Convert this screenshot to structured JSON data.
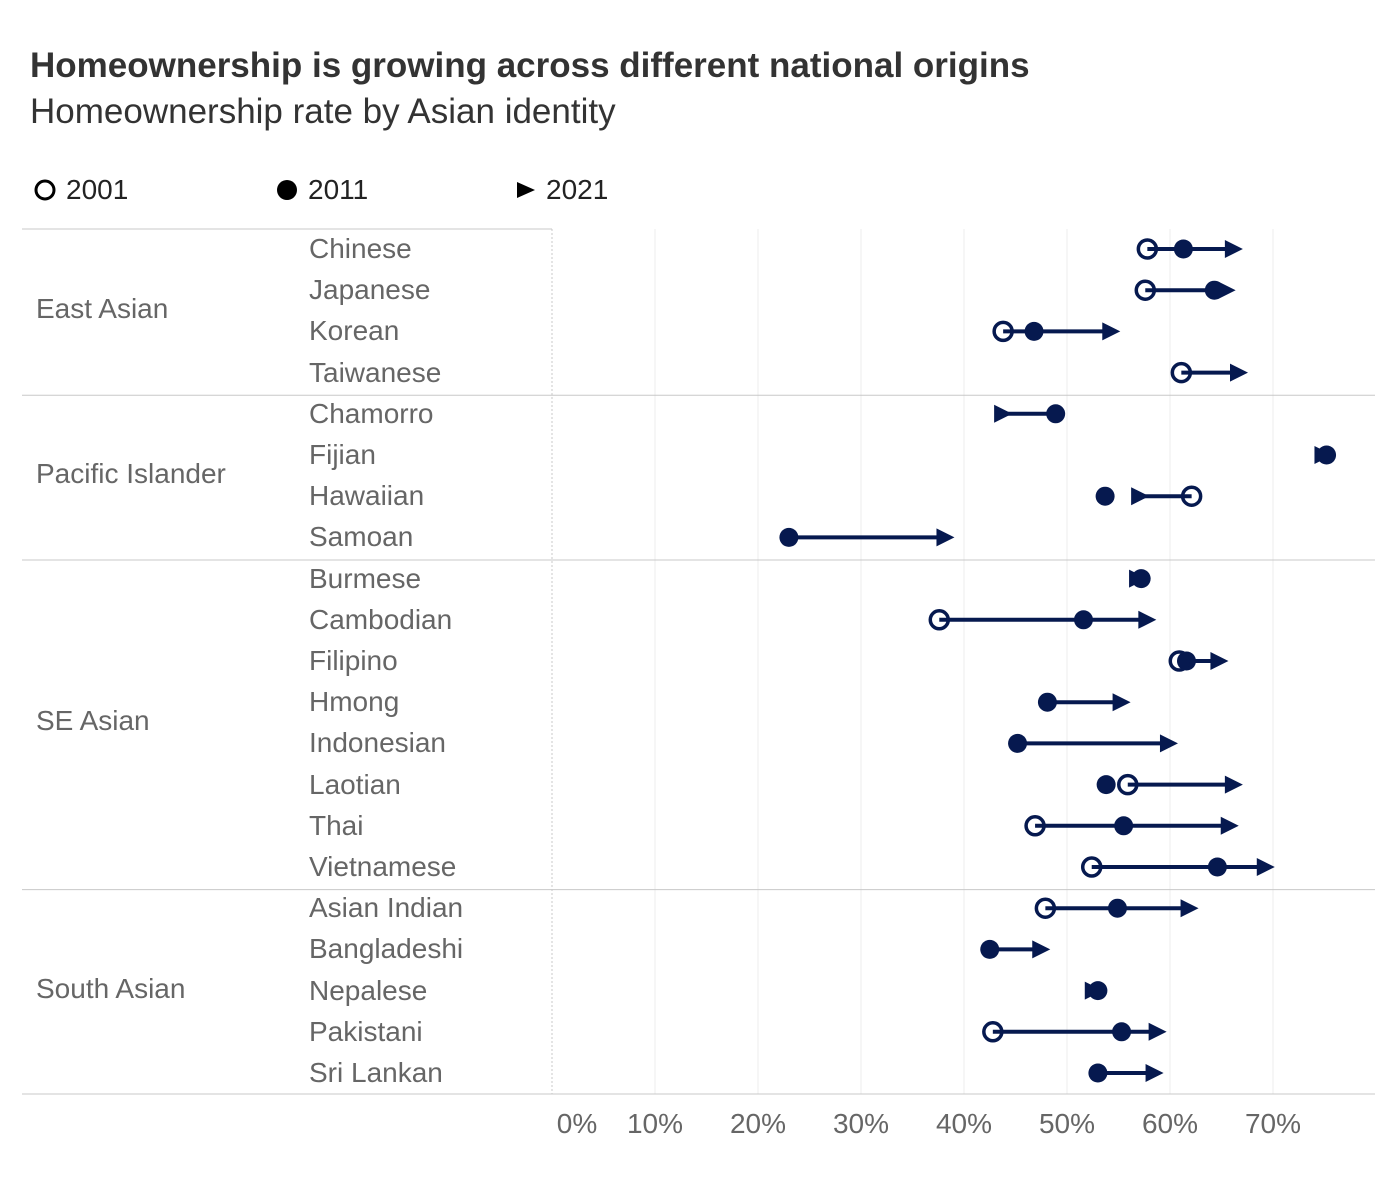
{
  "colors": {
    "mark": "#06194f",
    "grid": "#ececec",
    "rule": "#c8c8c8",
    "label": "#666666"
  },
  "chart_data": {
    "type": "dot-arrow",
    "title": "Homeownership is growing across different national origins",
    "subtitle": "Homeownership rate by Asian identity",
    "legend": [
      {
        "label": "2001",
        "marker": "open-circle"
      },
      {
        "label": "2011",
        "marker": "filled-circle"
      },
      {
        "label": "2021",
        "marker": "triangle-right"
      }
    ],
    "legend_placement": "top-left",
    "xlim": [
      0,
      80
    ],
    "x_ticks": [
      0,
      10,
      20,
      30,
      40,
      50,
      60,
      70
    ],
    "x_tick_labels": [
      "0%",
      "10%",
      "20%",
      "30%",
      "40%",
      "50%",
      "60%",
      "70%"
    ],
    "groups": [
      {
        "name": "East Asian",
        "rows": [
          {
            "label": "Chinese",
            "y2001": 57.8,
            "y2011": 61.3,
            "y2021": 66.2
          },
          {
            "label": "Japanese",
            "y2001": 57.6,
            "y2011": 64.3,
            "y2021": 65.5
          },
          {
            "label": "Korean",
            "y2001": 43.8,
            "y2011": 46.8,
            "y2021": 54.3
          },
          {
            "label": "Taiwanese",
            "y2001": 61.1,
            "y2011": null,
            "y2021": 66.7
          }
        ]
      },
      {
        "name": "Pacific Islander",
        "rows": [
          {
            "label": "Chamorro",
            "y2001": null,
            "y2011": 48.9,
            "y2021": 43.8
          },
          {
            "label": "Fijian",
            "y2001": null,
            "y2011": 75.2,
            "y2021": 74.9
          },
          {
            "label": "Hawaiian",
            "y2001": 62.1,
            "y2011": 53.7,
            "y2021": 57.1
          },
          {
            "label": "Samoan",
            "y2001": null,
            "y2011": 23.0,
            "y2021": 38.2
          }
        ]
      },
      {
        "name": "SE Asian",
        "rows": [
          {
            "label": "Burmese",
            "y2001": null,
            "y2011": 57.2,
            "y2021": 56.9
          },
          {
            "label": "Cambodian",
            "y2001": 37.6,
            "y2011": 51.6,
            "y2021": 57.8
          },
          {
            "label": "Filipino",
            "y2001": 60.9,
            "y2011": 61.6,
            "y2021": 64.8
          },
          {
            "label": "Hmong",
            "y2001": null,
            "y2011": 48.1,
            "y2021": 55.3
          },
          {
            "label": "Indonesian",
            "y2001": null,
            "y2011": 45.2,
            "y2021": 59.9
          },
          {
            "label": "Laotian",
            "y2001": 55.9,
            "y2011": 53.8,
            "y2021": 66.2
          },
          {
            "label": "Thai",
            "y2001": 46.9,
            "y2011": 55.5,
            "y2021": 65.8
          },
          {
            "label": "Vietnamese",
            "y2001": 52.4,
            "y2011": 64.6,
            "y2021": 69.3
          }
        ]
      },
      {
        "name": "South Asian",
        "rows": [
          {
            "label": "Asian Indian",
            "y2001": 47.9,
            "y2011": 54.9,
            "y2021": 61.9
          },
          {
            "label": "Bangladeshi",
            "y2001": null,
            "y2011": 42.5,
            "y2021": 47.5
          },
          {
            "label": "Nepalese",
            "y2001": null,
            "y2011": 53.0,
            "y2021": 52.6
          },
          {
            "label": "Pakistani",
            "y2001": 42.8,
            "y2011": 55.3,
            "y2021": 58.8
          },
          {
            "label": "Sri Lankan",
            "y2001": null,
            "y2011": 53.0,
            "y2021": 58.5
          }
        ]
      }
    ]
  }
}
